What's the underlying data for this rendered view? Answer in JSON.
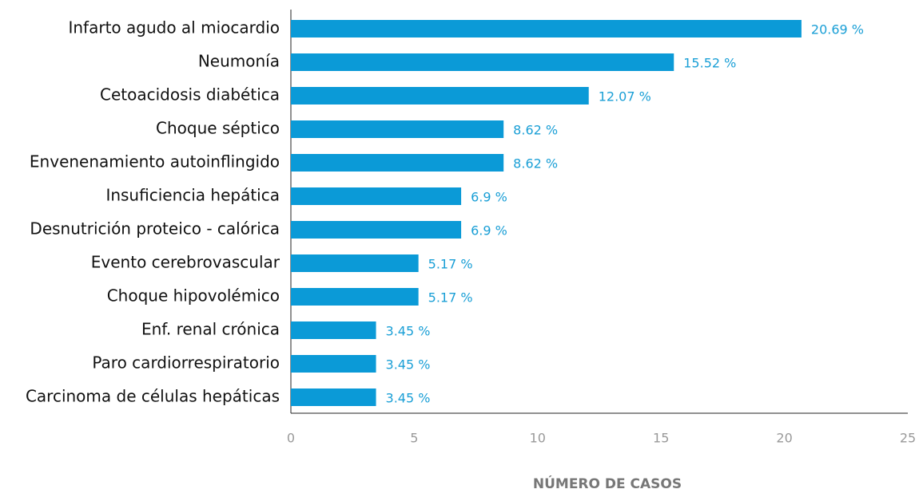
{
  "chart_data": {
    "type": "barh",
    "xlabel": "NÚMERO DE CASOS",
    "categories": [
      "Infarto agudo al miocardio",
      "Neumonía",
      "Cetoacidosis diabética",
      "Choque séptico",
      "Envenenamiento autoinflingido",
      "Insuficiencia hepática",
      "Desnutrición proteico - calórica",
      "Evento cerebrovascular",
      "Choque hipovolémico",
      "Enf. renal crónica",
      "Paro cardiorrespiratorio",
      "Carcinoma de células hepáticas"
    ],
    "values": [
      20.69,
      15.52,
      12.07,
      8.62,
      8.62,
      6.9,
      6.9,
      5.17,
      5.17,
      3.45,
      3.45,
      3.45
    ],
    "value_labels": [
      "20.69 %",
      "15.52 %",
      "12.07 %",
      "8.62 %",
      "8.62 %",
      "6.9 %",
      "6.9 %",
      "5.17 %",
      "5.17 %",
      "3.45 %",
      "3.45 %",
      "3.45 %"
    ],
    "color": "#0b9ad7",
    "xlim": [
      0,
      25
    ],
    "xticks": [
      0,
      5,
      10,
      15,
      20,
      25
    ],
    "grid": false
  }
}
